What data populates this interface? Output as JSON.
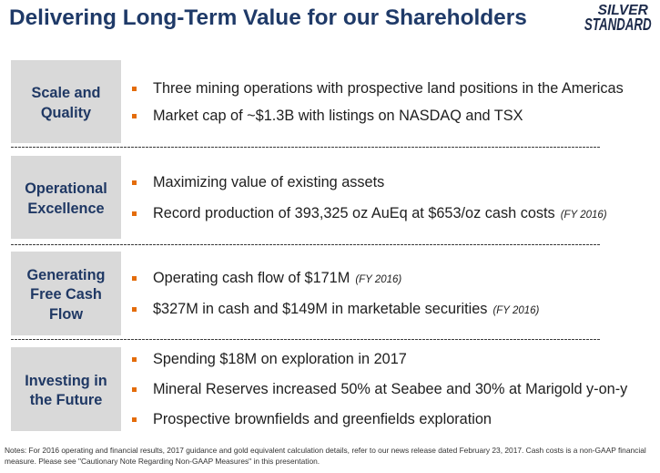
{
  "slide": {
    "title": "Delivering Long-Term Value for our Shareholders",
    "logo": {
      "line1": "SILVER",
      "line2": "STANDARD"
    },
    "rows": [
      {
        "label_lines": [
          "Scale and",
          "Quality"
        ],
        "bullets": [
          {
            "text": "Three mining operations with prospective land positions in the Americas"
          },
          {
            "text": "Market cap of ~$1.3B with listings on NASDAQ and TSX"
          }
        ]
      },
      {
        "label_lines": [
          "Operational",
          "Excellence"
        ],
        "bullets": [
          {
            "text": "Maximizing value of existing assets"
          },
          {
            "text": "Record production of 393,325 oz AuEq at $653/oz cash costs",
            "note": "(FY 2016)"
          }
        ]
      },
      {
        "label_lines": [
          "Generating",
          "Free Cash",
          "Flow"
        ],
        "bullets": [
          {
            "text": "Operating cash flow of $171M",
            "note": "(FY 2016)"
          },
          {
            "text": "$327M in cash and $149M in marketable securities",
            "note": "(FY 2016)"
          }
        ]
      },
      {
        "label_lines": [
          "Investing in",
          "the Future"
        ],
        "bullets": [
          {
            "text": "Spending $18M on exploration in 2017"
          },
          {
            "text": "Mineral Reserves increased 50% at Seabee and 30% at Marigold y-on-y"
          },
          {
            "text": "Prospective brownfields and greenfields exploration"
          }
        ]
      }
    ],
    "notes": "Notes: For 2016 operating and financial results, 2017 guidance and gold equivalent calculation details, refer to our news release dated February 23, 2017. Cash costs is a non-GAAP financial measure. Please see \"Cautionary Note Regarding Non-GAAP Measures\" in this presentation."
  },
  "icons": {
    "bullet": "square-bullet-icon"
  },
  "colors": {
    "title": "#1f3a68",
    "label": "#1f3864",
    "label_box": "#d9d9d9",
    "bullet": "#e46c0a",
    "body_text": "#1e1e1e",
    "logo": "#1c2a4a"
  }
}
